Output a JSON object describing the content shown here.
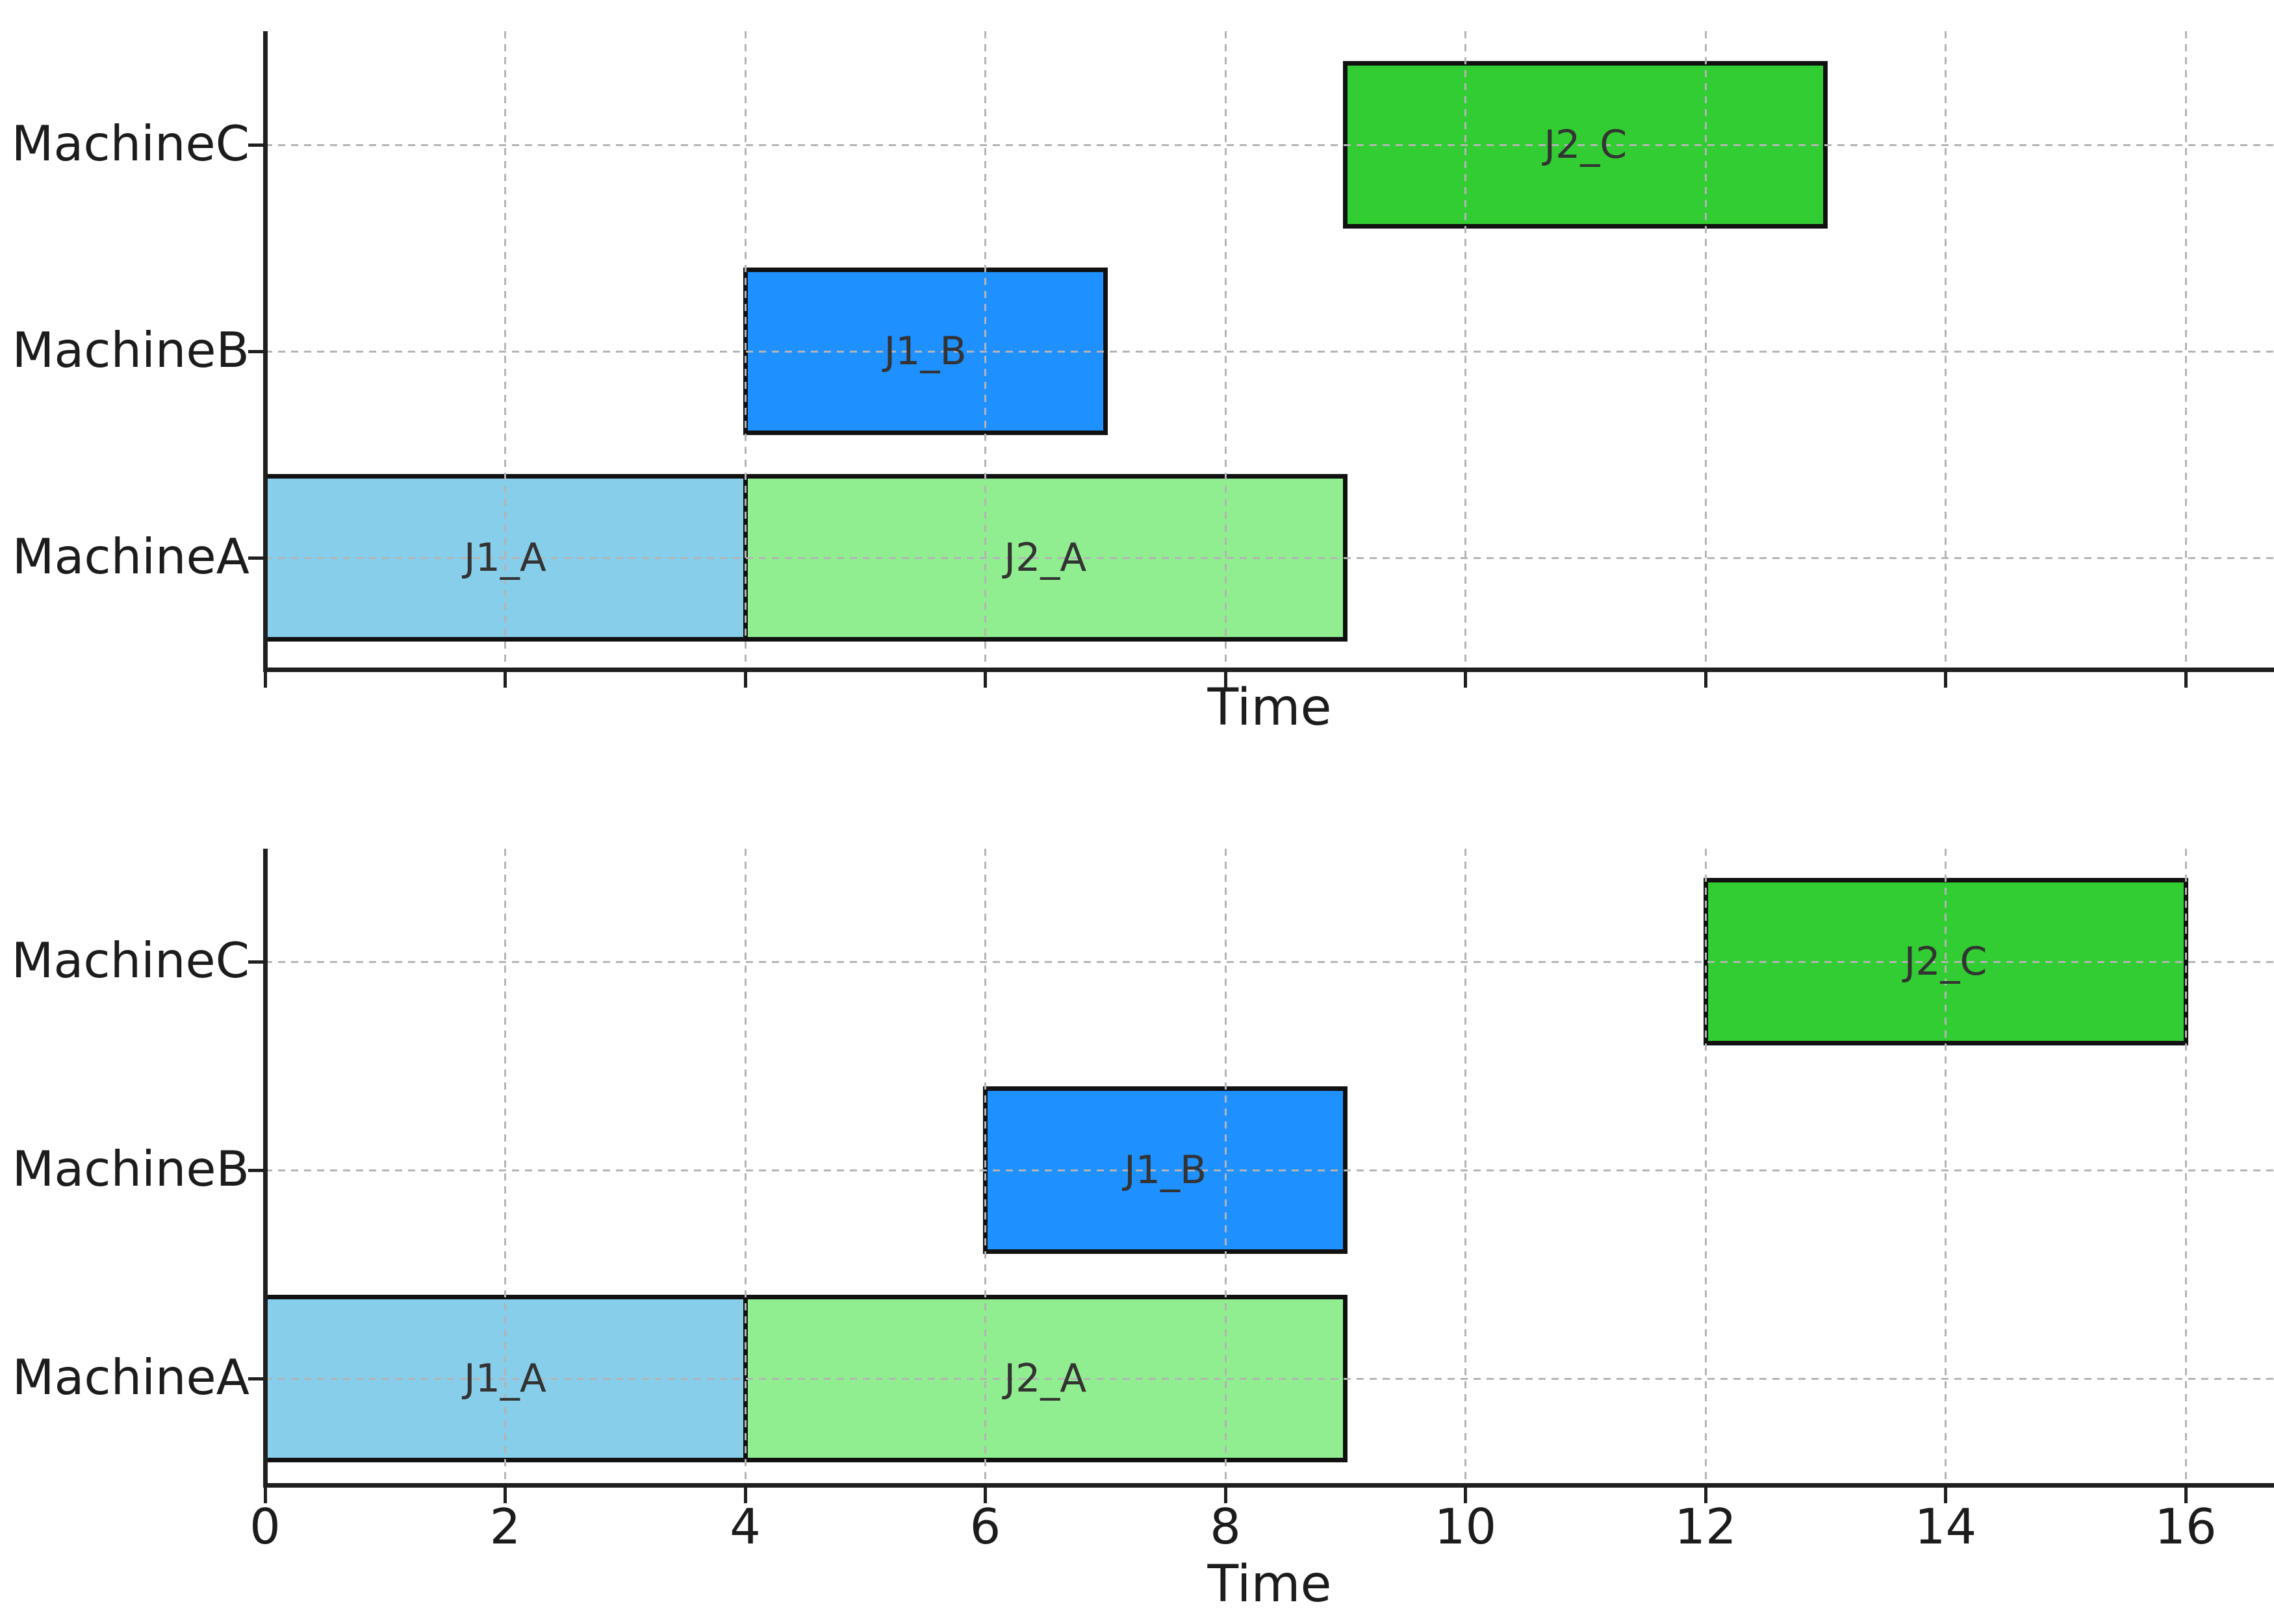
{
  "page": {
    "background": "#ffffff"
  },
  "labels": {
    "xlabel_top": "Time",
    "xlabel_bottom": "Time"
  },
  "colors": {
    "J1_A": "#87CEEB",
    "J2_A": "#90EE90",
    "J1_B": "#1E90FF",
    "J2_C": "#32CD32",
    "bar_edge": "#111111",
    "grid": "#b4b4b4",
    "spine": "#1f1f1f",
    "text": "#1c1c1c",
    "bar_label_text": "#333333"
  },
  "chart_data": [
    {
      "type": "bar",
      "subtype": "gantt",
      "title": "",
      "xlabel": "Time",
      "ylabel": "",
      "categories": [
        "MachineA",
        "MachineB",
        "MachineC"
      ],
      "xticks": [
        0,
        2,
        4,
        6,
        8,
        10,
        12,
        14,
        16
      ],
      "xtick_labels_visible": false,
      "xlim": [
        0,
        16.74
      ],
      "grid": true,
      "grid_style": "dashed, drawn over bars",
      "legend": "none",
      "bars": [
        {
          "label": "J1_A",
          "machine": "MachineA",
          "start": 0,
          "end": 4,
          "color": "#87CEEB"
        },
        {
          "label": "J2_A",
          "machine": "MachineA",
          "start": 4,
          "end": 9,
          "color": "#90EE90"
        },
        {
          "label": "J1_B",
          "machine": "MachineB",
          "start": 4,
          "end": 7,
          "color": "#1E90FF"
        },
        {
          "label": "J2_C",
          "machine": "MachineC",
          "start": 9,
          "end": 13,
          "color": "#32CD32"
        }
      ]
    },
    {
      "type": "bar",
      "subtype": "gantt",
      "title": "",
      "xlabel": "Time",
      "ylabel": "",
      "categories": [
        "MachineA",
        "MachineB",
        "MachineC"
      ],
      "xticks": [
        0,
        2,
        4,
        6,
        8,
        10,
        12,
        14,
        16
      ],
      "xtick_labels_visible": true,
      "xlim": [
        0,
        16.74
      ],
      "grid": true,
      "grid_style": "dashed, drawn over bars",
      "legend": "none",
      "bars": [
        {
          "label": "J1_A",
          "machine": "MachineA",
          "start": 0,
          "end": 4,
          "color": "#87CEEB"
        },
        {
          "label": "J2_A",
          "machine": "MachineA",
          "start": 4,
          "end": 9,
          "color": "#90EE90"
        },
        {
          "label": "J1_B",
          "machine": "MachineB",
          "start": 6,
          "end": 9,
          "color": "#1E90FF"
        },
        {
          "label": "J2_C",
          "machine": "MachineC",
          "start": 12,
          "end": 16,
          "color": "#32CD32"
        }
      ]
    }
  ]
}
